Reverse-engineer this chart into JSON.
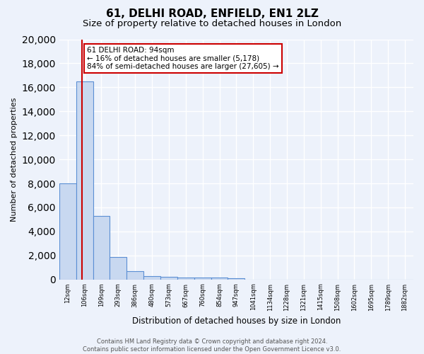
{
  "title": "61, DELHI ROAD, ENFIELD, EN1 2LZ",
  "subtitle": "Size of property relative to detached houses in London",
  "xlabel": "Distribution of detached houses by size in London",
  "ylabel": "Number of detached properties",
  "bin_labels": [
    "12sqm",
    "106sqm",
    "199sqm",
    "293sqm",
    "386sqm",
    "480sqm",
    "573sqm",
    "667sqm",
    "760sqm",
    "854sqm",
    "947sqm",
    "1041sqm",
    "1134sqm",
    "1228sqm",
    "1321sqm",
    "1415sqm",
    "1508sqm",
    "1602sqm",
    "1695sqm",
    "1789sqm",
    "1882sqm"
  ],
  "bar_heights": [
    8000,
    16500,
    5300,
    1850,
    700,
    300,
    200,
    155,
    155,
    155,
    80,
    0,
    0,
    0,
    0,
    0,
    0,
    0,
    0,
    0,
    0
  ],
  "bar_color": "#c8d8f0",
  "bar_edge_color": "#5b8fd4",
  "background_color": "#edf2fb",
  "grid_color": "#ffffff",
  "property_bin_index": 0.86,
  "property_line_color": "#cc0000",
  "annotation_text": "61 DELHI ROAD: 94sqm\n← 16% of detached houses are smaller (5,178)\n84% of semi-detached houses are larger (27,605) →",
  "annotation_box_color": "#ffffff",
  "annotation_border_color": "#cc0000",
  "ylim": [
    0,
    20000
  ],
  "yticks": [
    0,
    2000,
    4000,
    6000,
    8000,
    10000,
    12000,
    14000,
    16000,
    18000,
    20000
  ],
  "footer_text": "Contains HM Land Registry data © Crown copyright and database right 2024.\nContains public sector information licensed under the Open Government Licence v3.0.",
  "title_fontsize": 11,
  "subtitle_fontsize": 9.5
}
